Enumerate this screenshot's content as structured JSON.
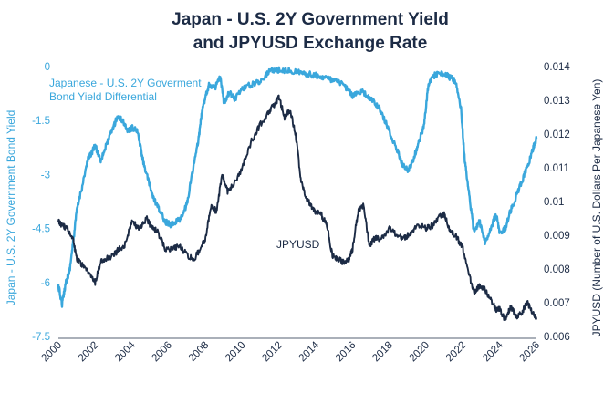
{
  "chart_data": {
    "type": "line",
    "title": [
      "Japan - U.S. 2Y Government Yield",
      "and JPYUSD Exchange Rate"
    ],
    "xlabel": "",
    "x_ticks": [
      "2000",
      "2002",
      "2004",
      "2006",
      "2008",
      "2010",
      "2012",
      "2014",
      "2016",
      "2018",
      "2020",
      "2022",
      "2024",
      "2026"
    ],
    "xlim": [
      2000,
      2026
    ],
    "y_left": {
      "label": "Japan - U.S. 2Y Government Bond Yield",
      "ylim": [
        -7.5,
        0
      ],
      "ticks": [
        "0",
        "-1.5",
        "-3",
        "-4.5",
        "-6",
        "-7.5"
      ],
      "color": "#3aa7dc"
    },
    "y_right": {
      "label": "JPYUSD (Number of U.S. Dollars Per Japanese Yen)",
      "ylim": [
        0.006,
        0.014
      ],
      "ticks": [
        "0.014",
        "0.013",
        "0.012",
        "0.011",
        "0.01",
        "0.009",
        "0.008",
        "0.007",
        "0.006"
      ],
      "color": "#1c2b45"
    },
    "annotations": {
      "spread_line1": "Japanese - U.S. 2Y Goverment",
      "spread_line2": "Bond Yield Differential",
      "jpy": "JPYUSD"
    },
    "series": [
      {
        "name": "Japanese - U.S. 2Y Goverment Bond Yield Differential",
        "axis": "left",
        "color": "#3aa7dc",
        "x": [
          2000.0,
          2000.2,
          2000.4,
          2000.6,
          2000.8,
          2001.0,
          2001.3,
          2001.6,
          2001.8,
          2002.0,
          2002.3,
          2002.6,
          2002.9,
          2003.2,
          2003.5,
          2003.8,
          2004.0,
          2004.3,
          2004.6,
          2004.9,
          2005.2,
          2005.5,
          2005.8,
          2006.1,
          2006.4,
          2006.7,
          2007.0,
          2007.3,
          2007.6,
          2007.8,
          2008.0,
          2008.2,
          2008.5,
          2008.8,
          2009.0,
          2009.3,
          2009.6,
          2010.0,
          2010.5,
          2011.0,
          2011.5,
          2012.0,
          2012.5,
          2013.0,
          2013.5,
          2014.0,
          2014.5,
          2015.0,
          2015.5,
          2016.0,
          2016.5,
          2017.0,
          2017.5,
          2018.0,
          2018.4,
          2018.7,
          2019.0,
          2019.3,
          2019.6,
          2019.9,
          2020.1,
          2020.3,
          2020.6,
          2021.0,
          2021.3,
          2021.6,
          2021.9,
          2022.1,
          2022.3,
          2022.6,
          2022.9,
          2023.2,
          2023.5,
          2023.8,
          2024.0,
          2024.3,
          2024.6,
          2024.9,
          2025.2,
          2025.5,
          2025.8,
          2026.0
        ],
        "values": [
          -6.1,
          -6.6,
          -6.0,
          -5.7,
          -4.9,
          -4.0,
          -3.3,
          -2.6,
          -2.4,
          -2.2,
          -2.6,
          -2.2,
          -1.8,
          -1.4,
          -1.5,
          -1.8,
          -1.7,
          -1.8,
          -2.6,
          -3.2,
          -3.7,
          -4.0,
          -4.3,
          -4.4,
          -4.3,
          -4.2,
          -3.8,
          -2.9,
          -2.1,
          -1.3,
          -0.8,
          -0.5,
          -0.6,
          -0.3,
          -1.0,
          -0.7,
          -0.9,
          -0.6,
          -0.5,
          -0.4,
          -0.1,
          -0.1,
          -0.1,
          -0.15,
          -0.2,
          -0.25,
          -0.3,
          -0.4,
          -0.5,
          -0.8,
          -0.7,
          -0.9,
          -1.2,
          -1.8,
          -2.3,
          -2.7,
          -2.9,
          -2.6,
          -2.1,
          -1.6,
          -0.6,
          -0.3,
          -0.2,
          -0.2,
          -0.3,
          -0.4,
          -1.2,
          -2.6,
          -3.4,
          -4.6,
          -4.3,
          -4.9,
          -4.5,
          -4.1,
          -4.6,
          -4.5,
          -4.0,
          -3.6,
          -3.2,
          -2.8,
          -2.3,
          -2.0
        ]
      },
      {
        "name": "JPYUSD",
        "axis": "right",
        "color": "#1c2b45",
        "x": [
          2000.0,
          2000.2,
          2000.5,
          2000.8,
          2001.0,
          2001.3,
          2001.6,
          2002.0,
          2002.3,
          2002.6,
          2003.0,
          2003.3,
          2003.6,
          2004.0,
          2004.4,
          2004.8,
          2005.0,
          2005.4,
          2005.8,
          2006.2,
          2006.6,
          2007.0,
          2007.4,
          2007.8,
          2008.0,
          2008.3,
          2008.6,
          2008.9,
          2009.2,
          2009.5,
          2010.0,
          2010.5,
          2011.0,
          2011.5,
          2011.8,
          2012.0,
          2012.3,
          2012.6,
          2012.9,
          2013.2,
          2013.5,
          2013.8,
          2014.0,
          2014.3,
          2014.6,
          2014.9,
          2015.2,
          2015.5,
          2015.8,
          2016.0,
          2016.3,
          2016.6,
          2016.9,
          2017.2,
          2017.6,
          2018.0,
          2018.4,
          2018.8,
          2019.2,
          2019.6,
          2020.0,
          2020.4,
          2020.8,
          2021.0,
          2021.3,
          2021.6,
          2022.0,
          2022.3,
          2022.6,
          2022.9,
          2023.2,
          2023.5,
          2023.8,
          2024.0,
          2024.3,
          2024.6,
          2024.9,
          2025.2,
          2025.5,
          2025.8,
          2026.0
        ],
        "values": [
          0.0094,
          0.0093,
          0.0092,
          0.0089,
          0.0083,
          0.0081,
          0.0079,
          0.0076,
          0.0082,
          0.0083,
          0.0084,
          0.0086,
          0.0087,
          0.0094,
          0.0092,
          0.0095,
          0.0093,
          0.0091,
          0.0086,
          0.0086,
          0.0087,
          0.0084,
          0.0083,
          0.0087,
          0.0089,
          0.0099,
          0.0097,
          0.0108,
          0.0103,
          0.0105,
          0.011,
          0.0118,
          0.0123,
          0.0127,
          0.0129,
          0.0131,
          0.0125,
          0.0127,
          0.012,
          0.0106,
          0.0101,
          0.0098,
          0.0097,
          0.0096,
          0.0093,
          0.0084,
          0.0083,
          0.0082,
          0.0083,
          0.0086,
          0.0097,
          0.0099,
          0.0087,
          0.0089,
          0.0089,
          0.0092,
          0.009,
          0.0089,
          0.0091,
          0.0093,
          0.0092,
          0.0093,
          0.0096,
          0.0096,
          0.0091,
          0.009,
          0.0086,
          0.0079,
          0.0073,
          0.0075,
          0.0074,
          0.0071,
          0.0068,
          0.0068,
          0.0065,
          0.0069,
          0.0066,
          0.0067,
          0.007,
          0.0067,
          0.0065
        ]
      }
    ]
  }
}
